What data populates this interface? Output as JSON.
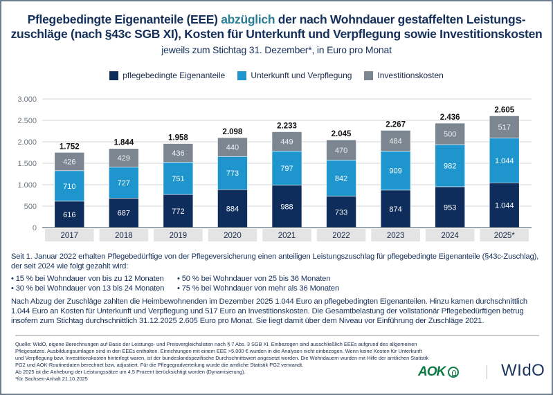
{
  "header": {
    "title_part1": "Pflegebedingte Eigenanteile (EEE) ",
    "title_highlight": "abzüglich",
    "title_part2": " der nach Wohndauer gestaffelten Leistungs-",
    "title_line2": "zuschläge (nach §43c SGB XI), Kosten für Unterkunft und Verpflegung sowie Investitionskosten",
    "subtitle": "jeweils zum Stichtag 31. Dezember*, in Euro pro Monat"
  },
  "colors": {
    "eigenanteile": "#0f2d5c",
    "unterkunft": "#1e96cd",
    "investition": "#7b8690",
    "title": "#15305a",
    "highlight": "#2a7d95",
    "category_bg": "#e4e4e4"
  },
  "chart_data": {
    "type": "bar",
    "stacked": true,
    "title": "Pflegebedingte Eigenanteile (EEE) abzüglich der nach Wohndauer gestaffelten Leistungszuschläge (nach §43c SGB XI), Kosten für Unterkunft und Verpflegung sowie Investitionskosten",
    "subtitle": "jeweils zum Stichtag 31. Dezember*, in Euro pro Monat",
    "xlabel": "",
    "ylabel": "",
    "ylim": [
      0,
      3000
    ],
    "yticks": [
      0,
      500,
      1000,
      1500,
      2000,
      2500,
      3000
    ],
    "ytick_labels": [
      "0",
      "500",
      "1.000",
      "1.500",
      "2.000",
      "2.500",
      "3.000"
    ],
    "grid": true,
    "legend_position": "top-center",
    "categories": [
      "2017",
      "2018",
      "2019",
      "2020",
      "2021",
      "2022",
      "2023",
      "2024",
      "2025*"
    ],
    "series": [
      {
        "name": "pflegebedingte Eigenanteile",
        "color": "#0f2d5c",
        "values": [
          616,
          687,
          772,
          884,
          988,
          733,
          874,
          953,
          1044
        ],
        "labels": [
          "616",
          "687",
          "772",
          "884",
          "988",
          "733",
          "874",
          "953",
          "1.044"
        ]
      },
      {
        "name": "Unterkunft und Verpflegung",
        "color": "#1e96cd",
        "values": [
          710,
          727,
          751,
          773,
          797,
          842,
          909,
          982,
          1044
        ],
        "labels": [
          "710",
          "727",
          "751",
          "773",
          "797",
          "842",
          "909",
          "982",
          "1.044"
        ]
      },
      {
        "name": "Investitionskosten",
        "color": "#7b8690",
        "values": [
          426,
          429,
          436,
          440,
          449,
          470,
          484,
          500,
          517
        ],
        "labels": [
          "426",
          "429",
          "436",
          "440",
          "449",
          "470",
          "484",
          "500",
          "517"
        ]
      }
    ],
    "totals": [
      1752,
      1844,
      1958,
      2098,
      2233,
      2045,
      2267,
      2436,
      2605
    ],
    "total_labels": [
      "1.752",
      "1.844",
      "1.958",
      "2.098",
      "2.233",
      "2.045",
      "2.267",
      "2.436",
      "2.605"
    ]
  },
  "text": {
    "intro": "Seit 1. Januar 2022 erhalten Pflegebedürftige von der Pflegeversicherung einen anteiligen Leistungszuschlag für pflegebedingte Eigenanteile (§43c-Zuschlag), der seit 2024 wie folgt gezahlt wird:",
    "bullets": [
      "• 15 % bei Wohndauer von bis zu 12 Monaten",
      "• 50 % bei Wohndauer von 25 bis 36 Monaten",
      "• 30 % bei Wohndauer von 13 bis 24 Monaten",
      "• 75 % bei Wohndauer von mehr als 36 Monaten"
    ],
    "summary": "Nach Abzug der Zuschläge zahlten die Heimbewohnenden im Dezember 2025 1.044 Euro an pflegebedingten Eigenanteilen. Hinzu kamen durchschnittlich 1.044 Euro an Kosten für Unterkunft und Verpflegung und 517 Euro an Investitionskosten. Die Gesamtbelastung der vollstationär Pflegebedürftigen betrug insofern zum Stichtag durchschnittlich 31.12.2025 2.605 Euro pro Monat. Sie liegt damit über dem Niveau vor Einführung der Zuschläge 2021.",
    "source": "Quelle: WIdO, eigene Berechnungen auf Basis der Leistungs- und Preisvergleichslisten nach § 7 Abs. 3 SGB XI. Einbezogen sind ausschließlich EEEs aufgrund des allgemeinen Pflegesatzes. Ausbildungsumlagen sind in den EEEs enthalten. Einrichtungen mit einem EEE >5.000 € wurden in die Analysen nicht einbezogen. Wenn keine Kosten für Unterkunft und Verpflegung bzw. Investitionskosten hinterlegt waren, ist der bundeslandspezifische Durchschnittswert angesetzt worden. Die Wohndauern wurden mit Hilfe der amtlichen Statistik PG2 und AOK-Routinedaten berechnet bzw. adjustiert. Für die Pflegegradverteilung wurde die amtliche Statistik PG2 verwandt.",
    "source_line2": "Ab 2025 ist die Anhebung der Leistungssätze um 4,5 Prozent berücksichtigt worden (Dynamisierung).",
    "footnote": "*für Sachsen-Anhalt 21.10.2025"
  },
  "logos": {
    "aok": "AOK",
    "wido": "WIdO"
  }
}
